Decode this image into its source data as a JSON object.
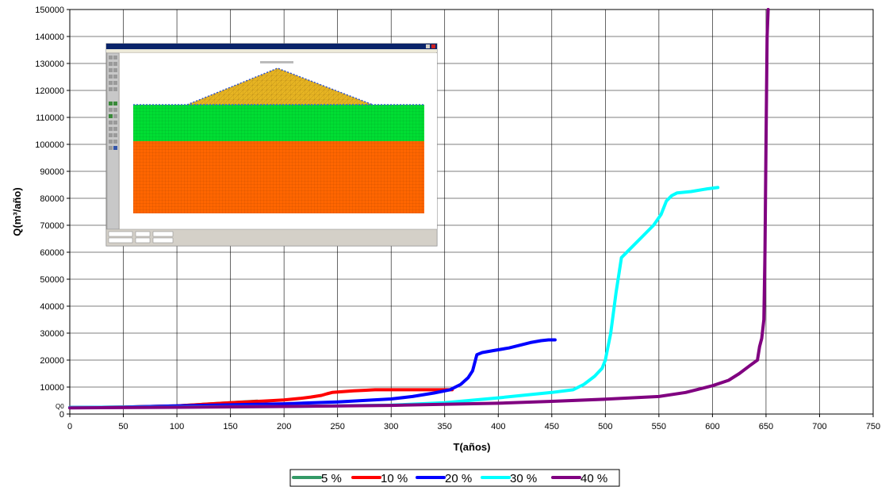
{
  "chart_data": {
    "type": "line",
    "xlabel": "T(años)",
    "ylabel": "Q(m³/año)",
    "xlim": [
      0,
      750
    ],
    "ylim": [
      0,
      150000
    ],
    "x_ticks": [
      0,
      50,
      100,
      150,
      200,
      250,
      300,
      350,
      400,
      450,
      500,
      550,
      600,
      650,
      700,
      750
    ],
    "y_ticks": [
      0,
      10000,
      20000,
      30000,
      40000,
      50000,
      60000,
      70000,
      80000,
      90000,
      100000,
      110000,
      120000,
      130000,
      140000,
      150000
    ],
    "grid": true,
    "legend_position": "bottom",
    "annotation": "Q0",
    "series": [
      {
        "name": "5 %",
        "color": "#339966",
        "x": [
          0,
          50,
          100,
          150,
          175
        ],
        "y": [
          2400,
          2600,
          3000,
          4200,
          4800
        ]
      },
      {
        "name": "10 %",
        "color": "#ff0000",
        "x": [
          0,
          50,
          100,
          150,
          180,
          200,
          215,
          225,
          235,
          240,
          245,
          255,
          265,
          275,
          285,
          300,
          325,
          350,
          357
        ],
        "y": [
          2400,
          2600,
          3000,
          4200,
          4800,
          5200,
          5800,
          6300,
          6900,
          7500,
          8000,
          8300,
          8600,
          8800,
          9000,
          9000,
          9000,
          9000,
          9000
        ]
      },
      {
        "name": "20 %",
        "color": "#0000ff",
        "x": [
          0,
          50,
          100,
          150,
          200,
          250,
          300,
          320,
          340,
          355,
          365,
          372,
          376,
          380,
          385,
          395,
          410,
          420,
          430,
          440,
          447,
          453
        ],
        "y": [
          2400,
          2600,
          3000,
          3400,
          3800,
          4500,
          5600,
          6500,
          7800,
          9000,
          11000,
          13500,
          16000,
          22000,
          22800,
          23500,
          24500,
          25500,
          26500,
          27200,
          27500,
          27500
        ]
      },
      {
        "name": "30 %",
        "color": "#00ffff",
        "x": [
          0,
          100,
          200,
          300,
          350,
          400,
          450,
          470,
          480,
          490,
          497,
          500,
          505,
          510,
          515,
          525,
          535,
          545,
          552,
          557,
          562,
          567,
          580,
          595,
          605
        ],
        "y": [
          2400,
          2600,
          2800,
          3300,
          4200,
          6000,
          8000,
          9000,
          11000,
          14000,
          17000,
          20000,
          30000,
          45000,
          58000,
          62000,
          66000,
          70000,
          74000,
          79000,
          81000,
          82000,
          82500,
          83500,
          84000
        ]
      },
      {
        "name": "40 %",
        "color": "#800080",
        "x": [
          0,
          100,
          200,
          300,
          400,
          450,
          500,
          550,
          575,
          600,
          615,
          625,
          635,
          642,
          644,
          646,
          648,
          649,
          650,
          651,
          652
        ],
        "y": [
          2300,
          2500,
          2800,
          3200,
          4000,
          4700,
          5500,
          6500,
          8000,
          10500,
          12500,
          15000,
          18000,
          20000,
          25000,
          28000,
          35000,
          60000,
          100000,
          140000,
          150000
        ]
      }
    ]
  }
}
